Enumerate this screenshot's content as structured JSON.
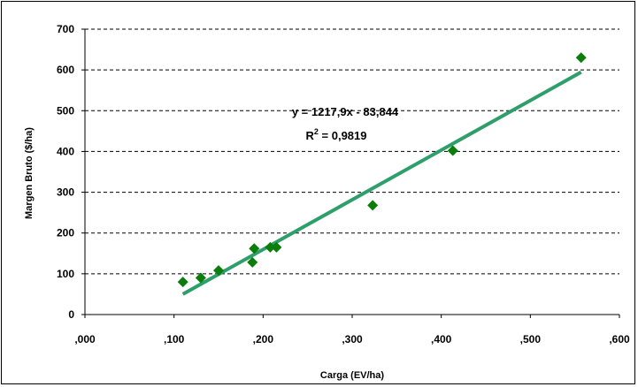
{
  "chart_data": {
    "type": "scatter",
    "title": "",
    "xlabel": "Carga (EV/ha)",
    "ylabel": "Margen Bruto ($/ha)",
    "xlim": [
      0,
      0.6
    ],
    "ylim": [
      0,
      700
    ],
    "x_ticks": [
      ",000",
      ",100",
      ",200",
      ",300",
      ",400",
      ",500",
      ",600"
    ],
    "y_ticks": [
      "0",
      "100",
      "200",
      "300",
      "400",
      "500",
      "600",
      "700"
    ],
    "grid": "horizontal-dashed",
    "series": [
      {
        "marker": "diamond",
        "color": "#0a7d0a",
        "points": [
          {
            "x": 0.11,
            "y": 80
          },
          {
            "x": 0.13,
            "y": 90
          },
          {
            "x": 0.15,
            "y": 108
          },
          {
            "x": 0.188,
            "y": 128
          },
          {
            "x": 0.19,
            "y": 162
          },
          {
            "x": 0.208,
            "y": 165
          },
          {
            "x": 0.215,
            "y": 165
          },
          {
            "x": 0.323,
            "y": 268
          },
          {
            "x": 0.413,
            "y": 402
          },
          {
            "x": 0.557,
            "y": 630
          }
        ]
      }
    ],
    "trendline": {
      "color": "#2e9e6b",
      "slope": 1217.9,
      "intercept": -83.844,
      "x_range": [
        0.11,
        0.557
      ],
      "equation": "y = 1217,9x - 83,844",
      "r2_prefix": "R",
      "r2_sup": "2",
      "r2_value": " = 0,9819"
    }
  }
}
